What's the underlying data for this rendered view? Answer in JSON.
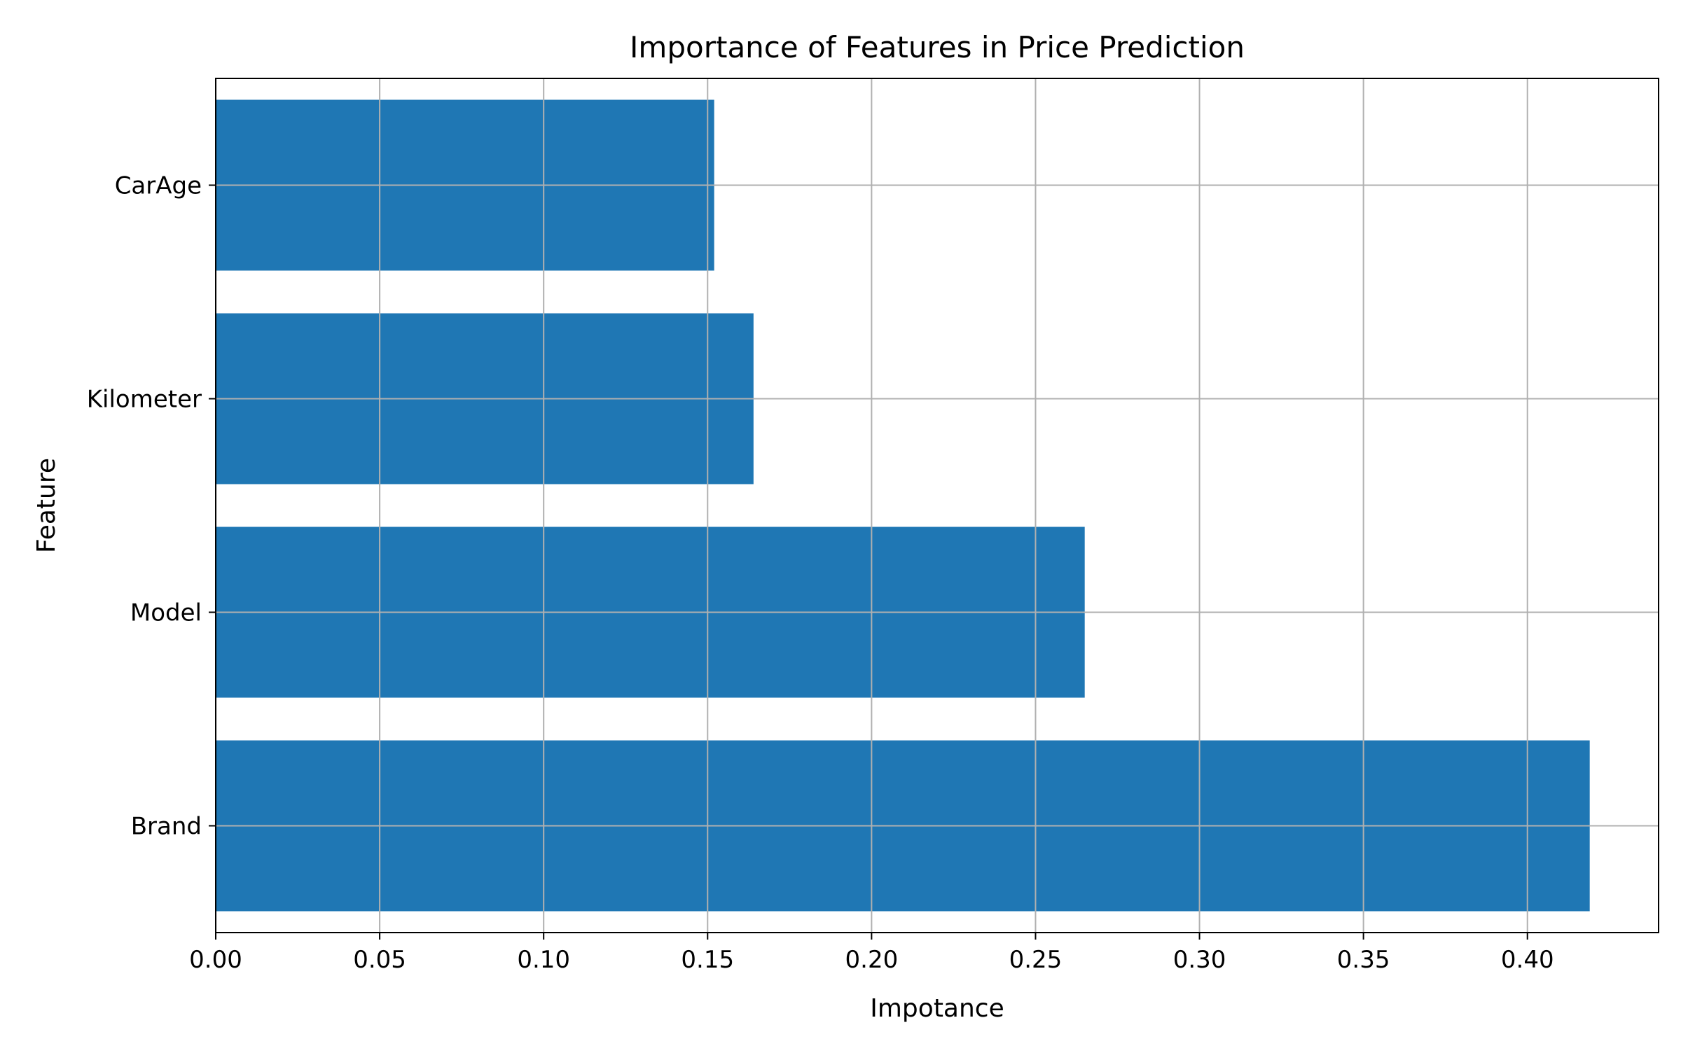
{
  "chart_data": {
    "type": "bar",
    "orientation": "horizontal",
    "title": "Importance of Features in Price Prediction",
    "xlabel": "Impotance",
    "ylabel": "Feature",
    "categories": [
      "Brand",
      "Model",
      "Kilometer",
      "CarAge"
    ],
    "values": [
      0.419,
      0.265,
      0.164,
      0.152
    ],
    "xlim": [
      0.0,
      0.44
    ],
    "xticks": [
      0.0,
      0.05,
      0.1,
      0.15,
      0.2,
      0.25,
      0.3,
      0.35,
      0.4
    ],
    "xtick_labels": [
      "0.00",
      "0.05",
      "0.10",
      "0.15",
      "0.20",
      "0.25",
      "0.30",
      "0.35",
      "0.40"
    ],
    "grid": true,
    "bar_color": "#1f77b4",
    "grid_color": "#b0b0b0",
    "axis_color": "#000000"
  }
}
